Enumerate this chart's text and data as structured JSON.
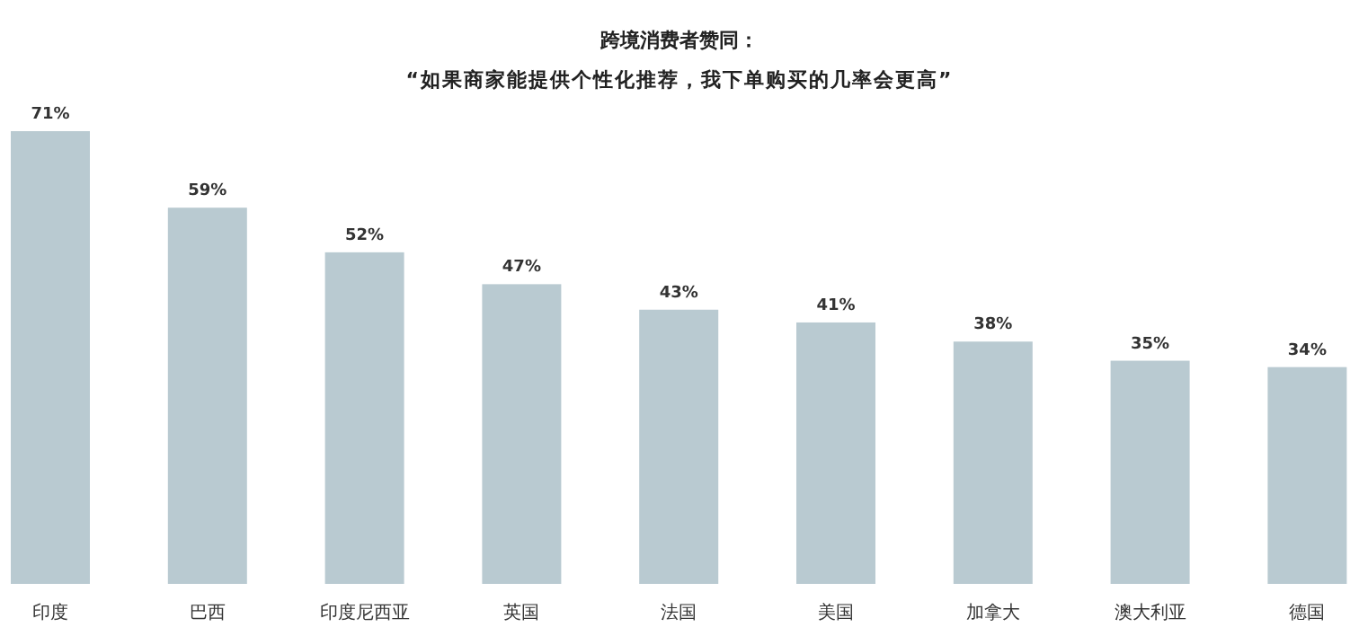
{
  "chart_data": {
    "type": "bar",
    "title": "跨境消费者赞同：",
    "subtitle": "“如果商家能提供个性化推荐，我下单购买的几率会更高”",
    "categories": [
      "印度",
      "巴西",
      "印度尼西亚",
      "英国",
      "法国",
      "美国",
      "加拿大",
      "澳大利亚",
      "德国"
    ],
    "values": [
      71,
      59,
      52,
      47,
      43,
      41,
      38,
      35,
      34
    ],
    "value_labels": [
      "71%",
      "59%",
      "52%",
      "47%",
      "43%",
      "41%",
      "38%",
      "35%",
      "34%"
    ],
    "color": "#b9cad1",
    "ylim": [
      0,
      71
    ],
    "tick_labels": "x"
  }
}
